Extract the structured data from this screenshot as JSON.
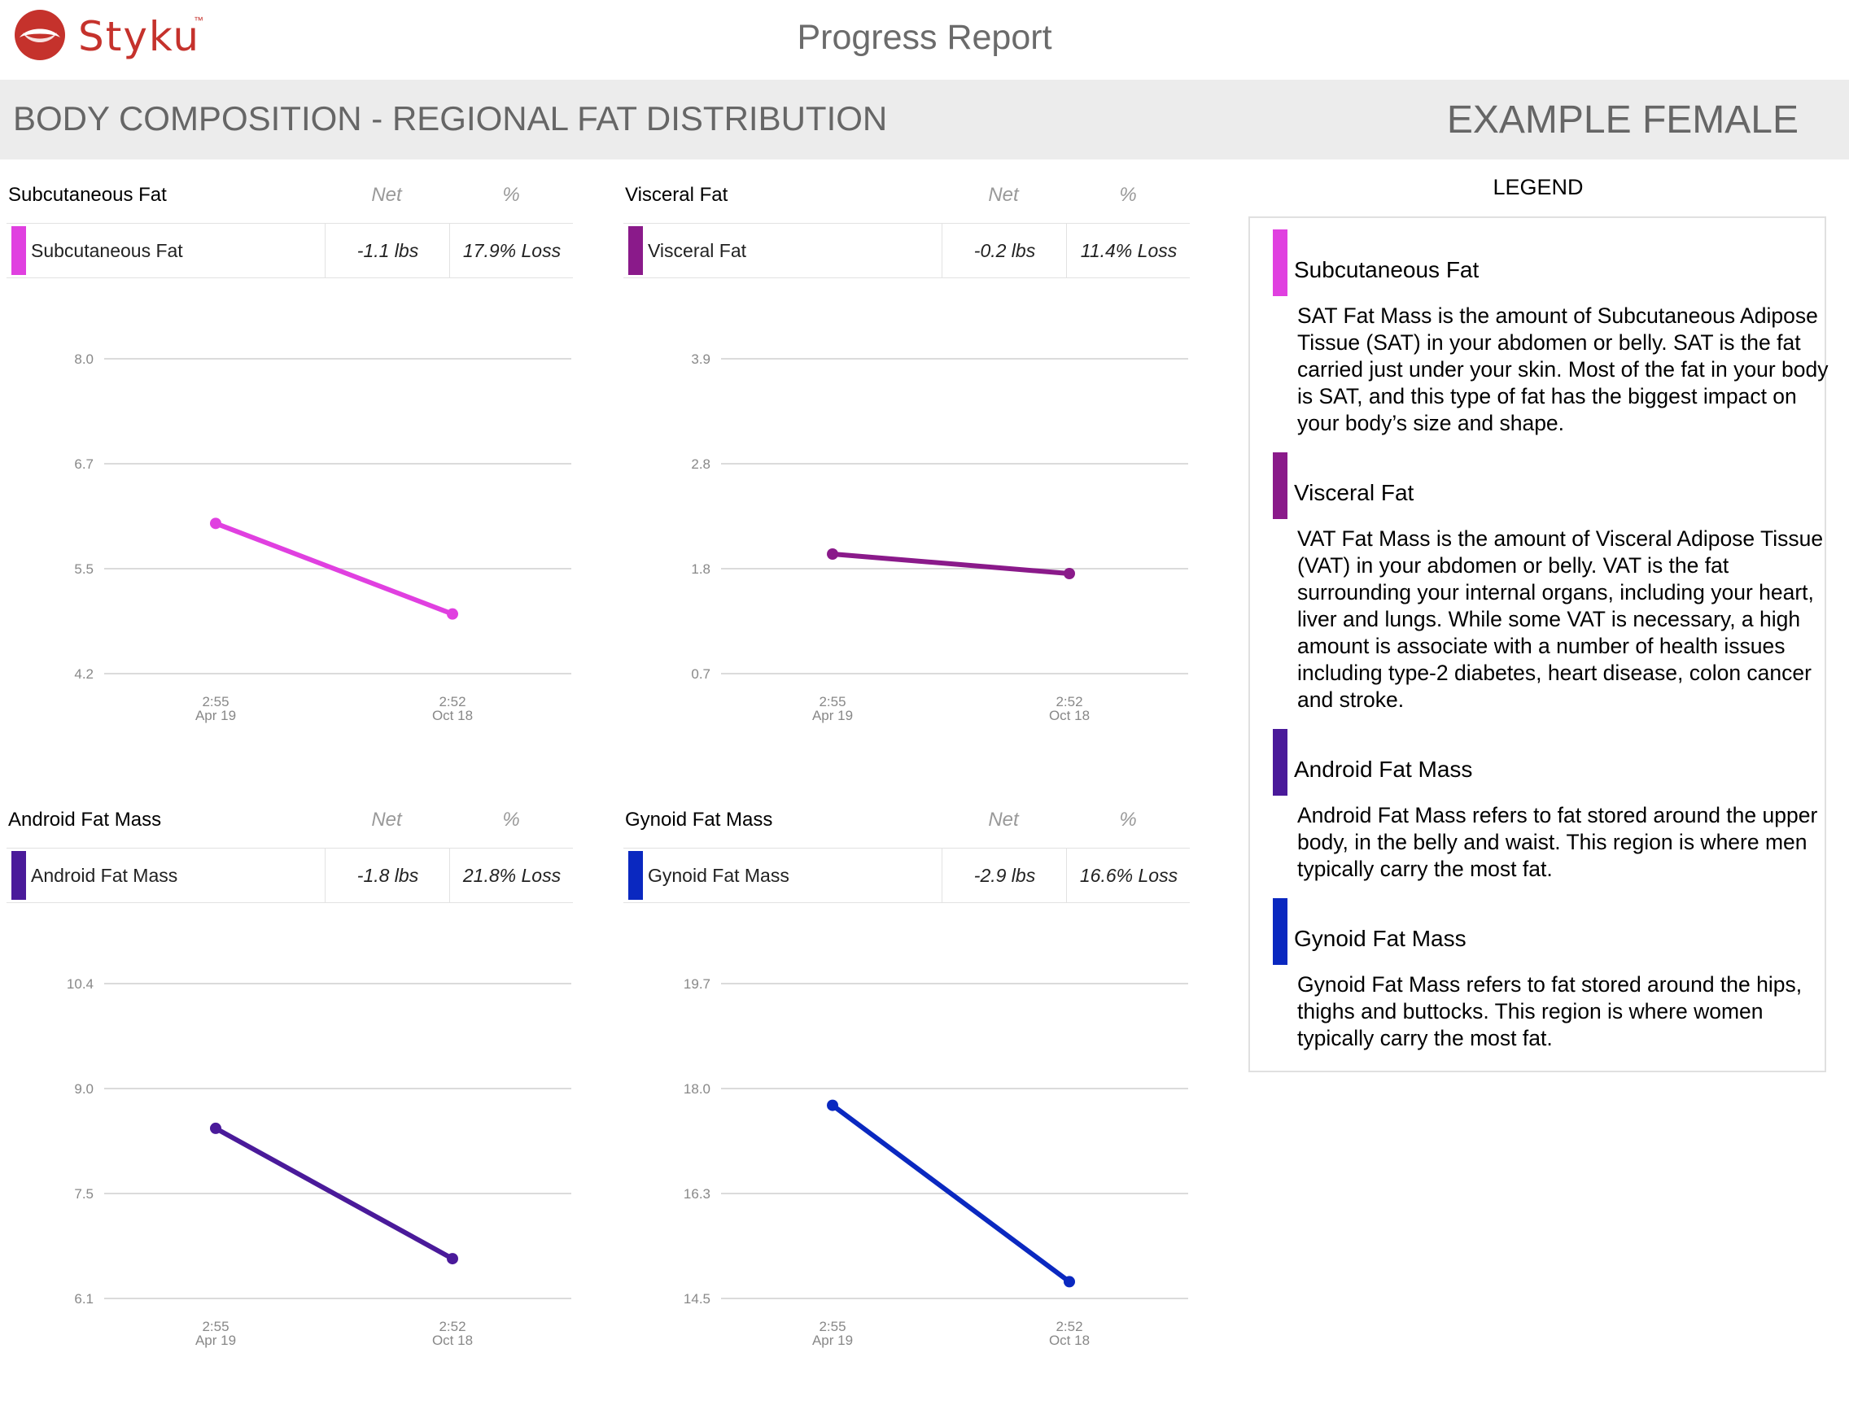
{
  "brand": {
    "name": "Styku",
    "tm": "™",
    "color": "#c5322c"
  },
  "report_title": "Progress Report",
  "banner": {
    "title": "BODY COMPOSITION - REGIONAL FAT DISTRIBUTION",
    "client": "EXAMPLE FEMALE"
  },
  "column_headers": {
    "net": "Net",
    "pct": "%"
  },
  "legend": {
    "title": "LEGEND",
    "items": [
      {
        "name": "Subcutaneous Fat",
        "color": "#e040e0",
        "description": "SAT Fat Mass is the amount of Subcutaneous Adipose Tissue (SAT) in your abdomen or belly. SAT is the fat carried just under your skin. Most of the fat in your body is SAT, and this type of fat has the biggest impact on your body’s size and shape."
      },
      {
        "name": "Visceral Fat",
        "color": "#8a1a8a",
        "description": "VAT Fat Mass is the amount of Visceral Adipose Tissue (VAT) in your abdomen or belly. VAT is the fat surrounding your internal organs, including your heart, liver and lungs. While some VAT is necessary, a high amount is associate with a number of health issues including type-2 diabetes, heart disease, colon cancer and stroke."
      },
      {
        "name": "Android Fat Mass",
        "color": "#4a1a9a",
        "description": "Android Fat Mass refers to fat stored around the upper body, in the belly and waist. This region is where men typically carry the most fat."
      },
      {
        "name": "Gynoid Fat Mass",
        "color": "#0a28c0",
        "description": "Gynoid Fat Mass refers to fat stored around the hips, thighs and buttocks. This region is where women typically carry the most fat."
      }
    ]
  },
  "chart_data": [
    {
      "type": "line",
      "title": "Subcutaneous Fat",
      "color": "#e040e0",
      "net": "-1.1 lbs",
      "pct": "17.9% Loss",
      "x": [
        [
          "2:55",
          "Apr 19"
        ],
        [
          "2:52",
          "Oct 18"
        ]
      ],
      "series": [
        {
          "name": "Subcutaneous Fat",
          "values": [
            6.0,
            4.9
          ]
        }
      ],
      "yticks": [
        "8.0",
        "6.7",
        "5.5",
        "4.2",
        "2.9"
      ],
      "ylim": [
        2.9,
        8.0
      ],
      "grid": true
    },
    {
      "type": "line",
      "title": "Visceral Fat",
      "color": "#8a1a8a",
      "net": "-0.2 lbs",
      "pct": "11.4% Loss",
      "x": [
        [
          "2:55",
          "Apr 19"
        ],
        [
          "2:52",
          "Oct 18"
        ]
      ],
      "series": [
        {
          "name": "Visceral Fat",
          "values": [
            1.9,
            1.7
          ]
        }
      ],
      "yticks": [
        "3.9",
        "2.8",
        "1.8",
        "0.7",
        "-0.4"
      ],
      "ylim": [
        -0.4,
        3.9
      ],
      "grid": true
    },
    {
      "type": "line",
      "title": "Android Fat Mass",
      "color": "#4a1a9a",
      "net": "-1.8 lbs",
      "pct": "21.8% Loss",
      "x": [
        [
          "2:55",
          "Apr 19"
        ],
        [
          "2:52",
          "Oct 18"
        ]
      ],
      "series": [
        {
          "name": "Android Fat Mass",
          "values": [
            8.4,
            6.6
          ]
        }
      ],
      "yticks": [
        "10.4",
        "9.0",
        "7.5",
        "6.1",
        "4.6"
      ],
      "ylim": [
        4.6,
        10.4
      ],
      "grid": true
    },
    {
      "type": "line",
      "title": "Gynoid Fat Mass",
      "color": "#0a28c0",
      "net": "-2.9 lbs",
      "pct": "16.6% Loss",
      "x": [
        [
          "2:55",
          "Apr 19"
        ],
        [
          "2:52",
          "Oct 18"
        ]
      ],
      "series": [
        {
          "name": "Gynoid Fat Mass",
          "values": [
            17.7,
            14.8
          ]
        }
      ],
      "yticks": [
        "19.7",
        "18.0",
        "16.3",
        "14.5",
        "12.8"
      ],
      "ylim": [
        12.8,
        19.7
      ],
      "grid": true
    }
  ]
}
